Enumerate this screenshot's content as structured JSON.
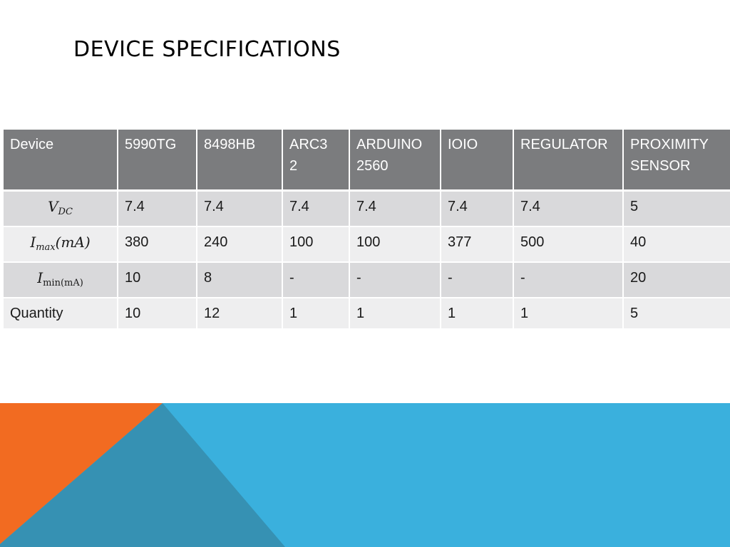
{
  "slide": {
    "title": "DEVICE SPECIFICATIONS"
  },
  "table": {
    "header": [
      "Device",
      "5990TG",
      "8498HB",
      "ARC3\n2",
      "ARDUINO 2560",
      "IOIO",
      "REGULATOR",
      "PROXIMITY SENSOR"
    ],
    "rows": [
      {
        "label_main": "V",
        "label_sub": "DC",
        "label_tail": "",
        "cells": [
          "7.4",
          "7.4",
          "7.4",
          "7.4",
          "7.4",
          "7.4",
          "5"
        ]
      },
      {
        "label_main": "I",
        "label_sub": "max",
        "label_tail": "(mA)",
        "cells": [
          "380",
          "240",
          "100",
          "100",
          "377",
          "500",
          "40"
        ]
      },
      {
        "label_main": "I",
        "label_sub": "min(mA)",
        "label_tail": "",
        "cells": [
          "10",
          "8",
          "-",
          "-",
          "-",
          "-",
          "20"
        ]
      },
      {
        "label": "Quantity",
        "cells": [
          "10",
          "12",
          "1",
          "1",
          "1",
          "1",
          "5"
        ]
      }
    ]
  },
  "colors": {
    "header_bg": "#7b7c7e",
    "row_dark": "#d9d9db",
    "row_light": "#eeeeef",
    "accent_orange": "#f26b21",
    "accent_blue": "#3ab0dd",
    "accent_teal": "#3691b3"
  }
}
